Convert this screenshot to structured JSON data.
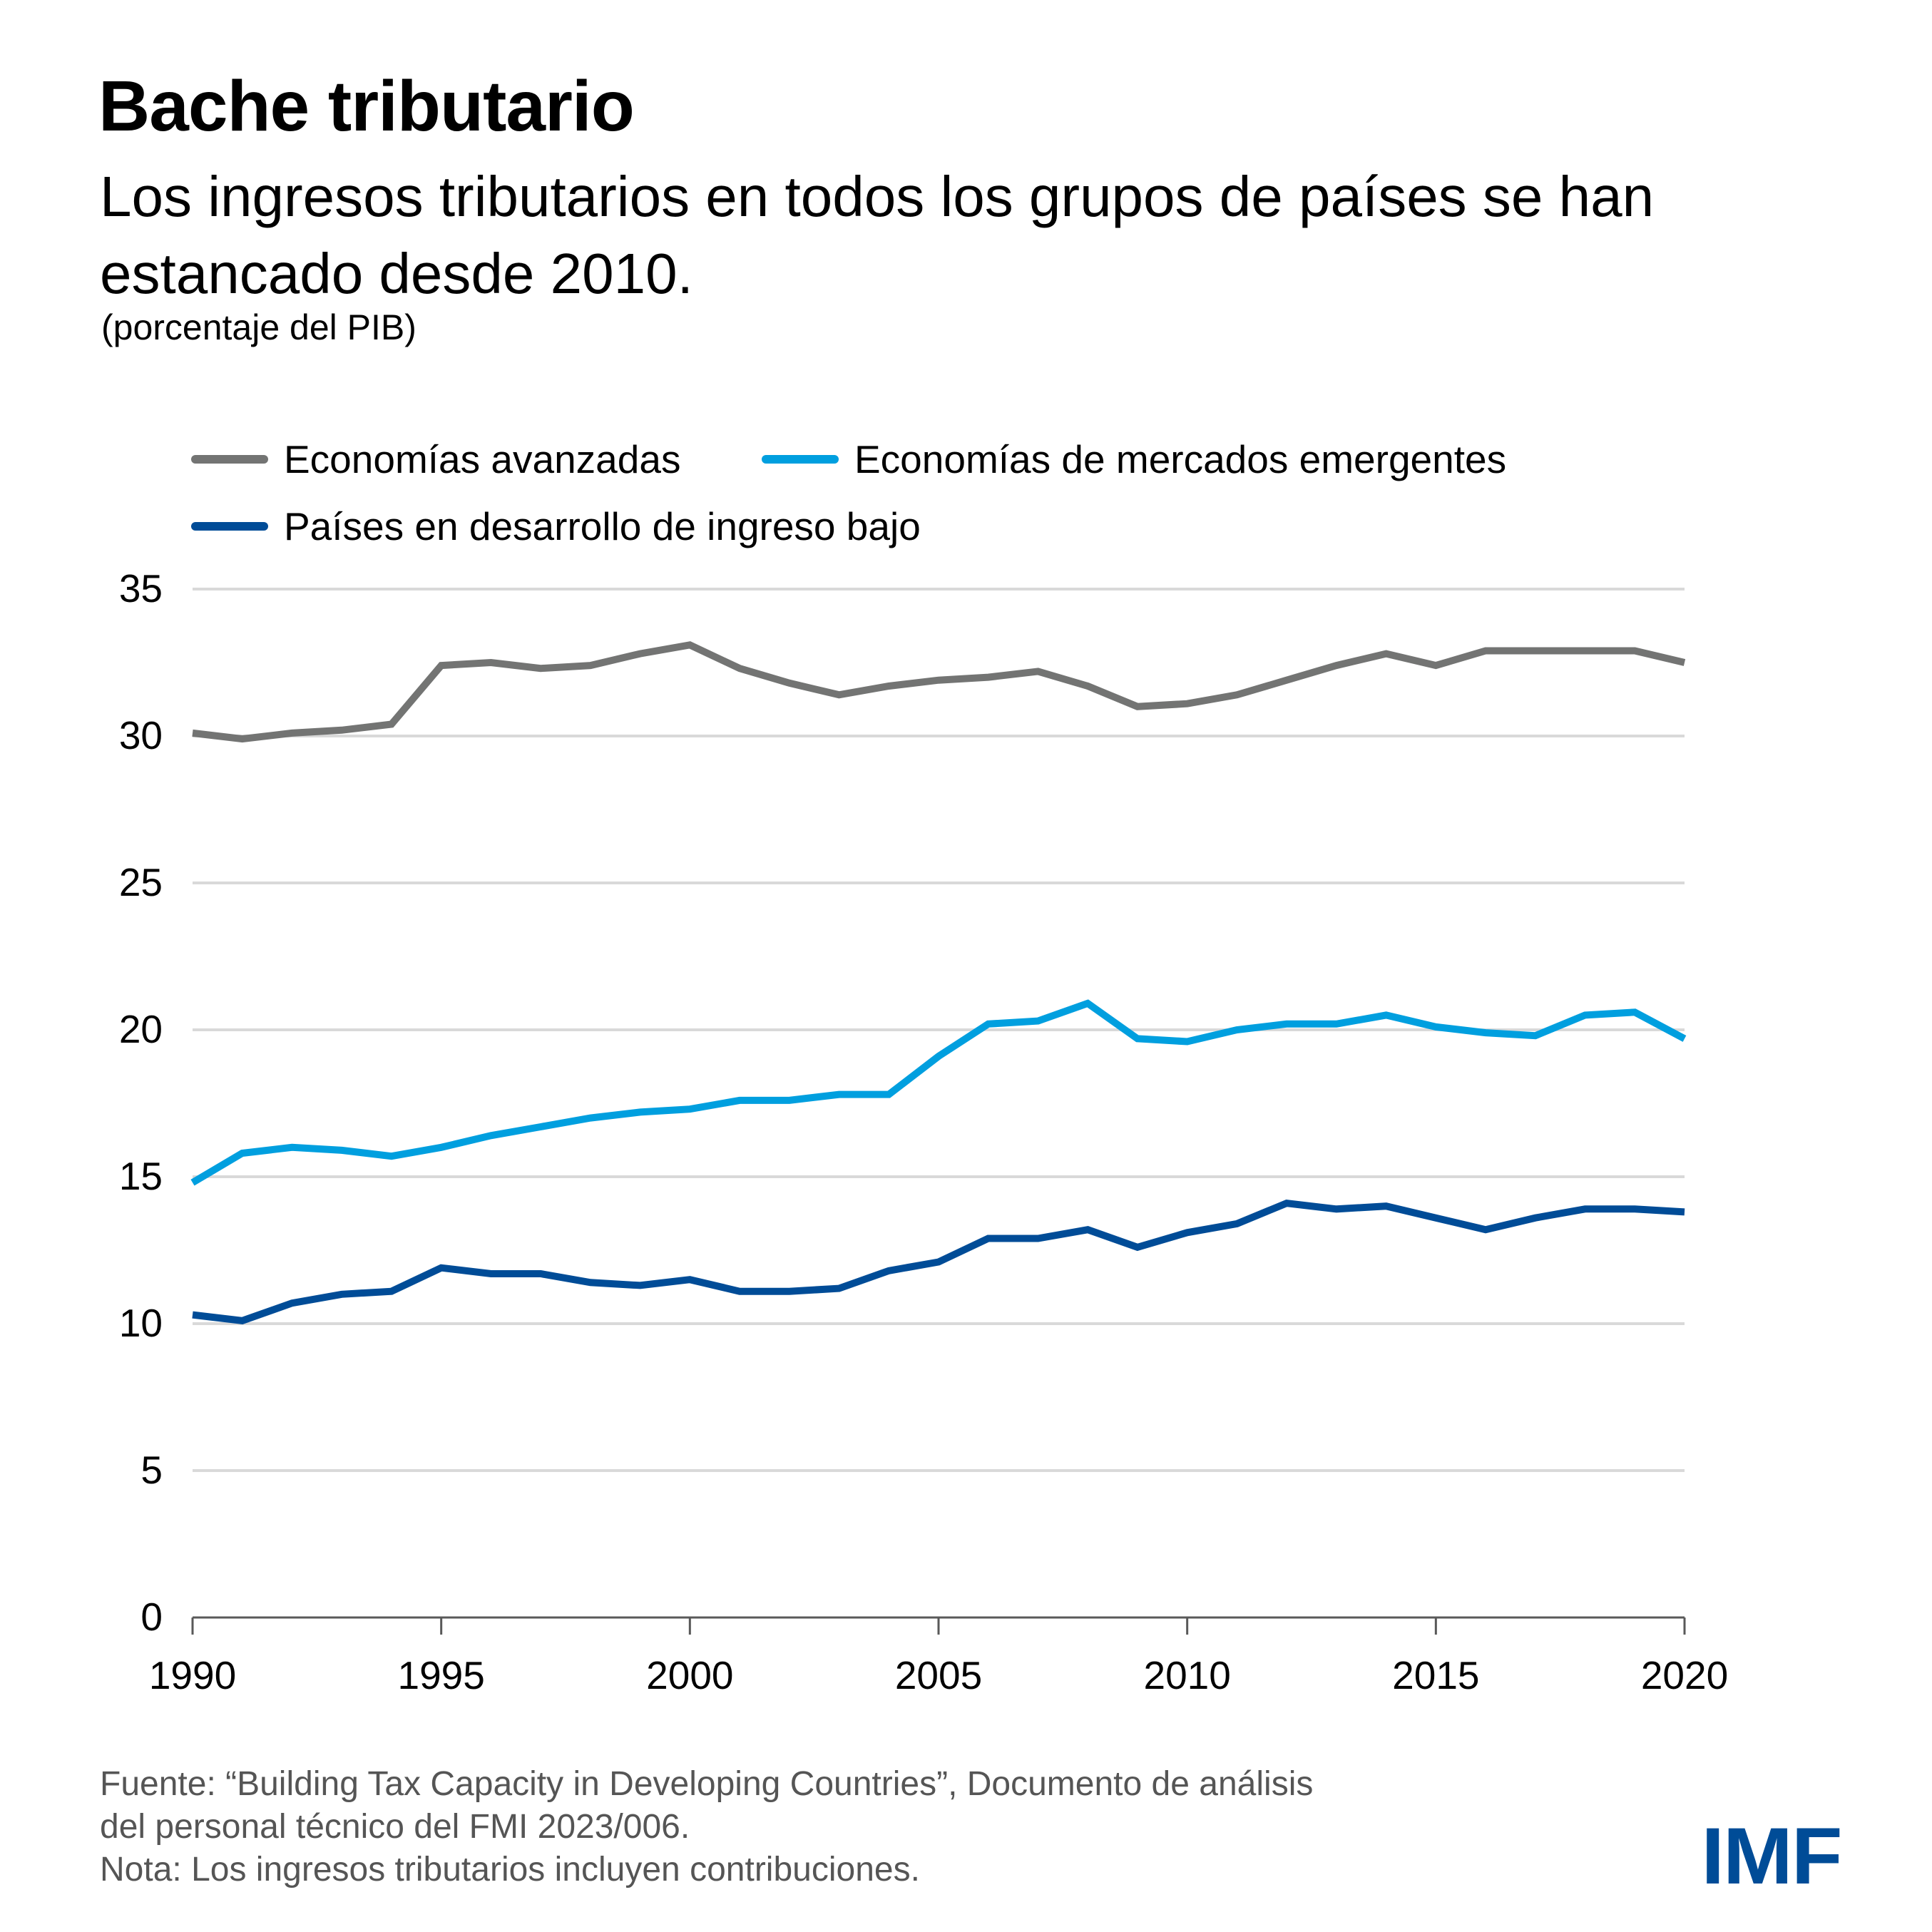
{
  "header": {
    "title": "Bache tributario",
    "subtitle": "Los ingresos tributarios en todos los grupos de países se han estancado desde 2010.",
    "unit": "(porcentaje del PIB)"
  },
  "footer": {
    "source_line1": "Fuente: “Building Tax Capacity in Developing Countries”, Documento de análisis",
    "source_line2": "del personal técnico del FMI 2023/006.",
    "note": "Nota: Los ingresos tributarios incluyen contribuciones.",
    "logo": "IMF"
  },
  "colors": {
    "advanced": "#737473",
    "emerging": "#009fdf",
    "low_income": "#004c97",
    "grid": "#d9d9d9",
    "axis": "#595959",
    "logo": "#004c97"
  },
  "chart_data": {
    "type": "line",
    "title": "Bache tributario",
    "subtitle": "Los ingresos tributarios en todos los grupos de países se han estancado desde 2010.",
    "xlabel": "",
    "ylabel": "(porcentaje del PIB)",
    "x": [
      1990,
      1991,
      1992,
      1993,
      1994,
      1995,
      1996,
      1997,
      1998,
      1999,
      2000,
      2001,
      2002,
      2003,
      2004,
      2005,
      2006,
      2007,
      2008,
      2009,
      2010,
      2011,
      2012,
      2013,
      2014,
      2015,
      2016,
      2017,
      2018,
      2019,
      2020
    ],
    "xlim": [
      1990,
      2020
    ],
    "ylim": [
      0,
      35
    ],
    "x_ticks": [
      "1990",
      "1995",
      "2000",
      "2005",
      "2010",
      "2015",
      "2020"
    ],
    "y_ticks": [
      "0",
      "5",
      "10",
      "15",
      "20",
      "25",
      "30",
      "35"
    ],
    "grid": true,
    "legend_position": "top",
    "series": [
      {
        "name": "Economías avanzadas",
        "color": "#737473",
        "values": [
          30.1,
          29.9,
          30.1,
          30.2,
          30.4,
          32.4,
          32.5,
          32.3,
          32.4,
          32.8,
          33.1,
          32.3,
          31.8,
          31.4,
          31.7,
          31.9,
          32.0,
          32.2,
          31.7,
          31.0,
          31.1,
          31.4,
          31.9,
          32.4,
          32.8,
          32.4,
          32.9,
          32.9,
          32.9,
          32.9,
          32.5
        ]
      },
      {
        "name": "Economías de mercados emergentes",
        "color": "#009fdf",
        "values": [
          14.8,
          15.8,
          16.0,
          15.9,
          15.7,
          16.0,
          16.4,
          16.7,
          17.0,
          17.2,
          17.3,
          17.6,
          17.6,
          17.8,
          17.8,
          19.1,
          20.2,
          20.3,
          20.9,
          19.7,
          19.6,
          20.0,
          20.2,
          20.2,
          20.5,
          20.1,
          19.9,
          19.8,
          20.5,
          20.6,
          19.7
        ]
      },
      {
        "name": "Países en desarrollo de ingreso bajo",
        "color": "#004c97",
        "values": [
          10.3,
          10.1,
          10.7,
          11.0,
          11.1,
          11.9,
          11.7,
          11.7,
          11.4,
          11.3,
          11.5,
          11.1,
          11.1,
          11.2,
          11.8,
          12.1,
          12.9,
          12.9,
          13.2,
          12.6,
          13.1,
          13.4,
          14.1,
          13.9,
          14.0,
          13.6,
          13.2,
          13.6,
          13.9,
          13.9,
          13.8
        ]
      }
    ]
  }
}
